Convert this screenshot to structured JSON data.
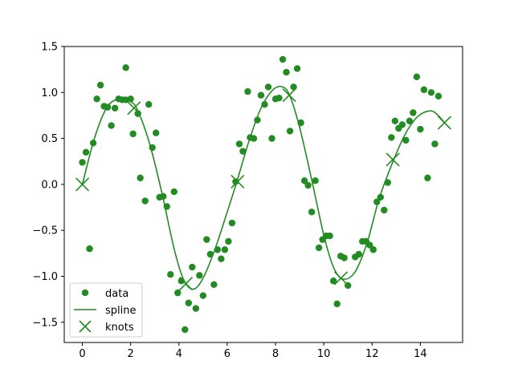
{
  "chart_data": {
    "type": "scatter",
    "title": "",
    "xlabel": "",
    "ylabel": "",
    "xlim": [
      -0.75,
      15.75
    ],
    "ylim": [
      -1.72,
      1.5
    ],
    "grid": false,
    "legend_position": "bottom-left",
    "x_ticks": [
      0,
      2,
      4,
      6,
      8,
      10,
      12,
      14
    ],
    "y_ticks": [
      -1.5,
      -1.0,
      -0.5,
      0.0,
      0.5,
      1.0,
      1.5
    ],
    "x_tick_labels": [
      "0",
      "2",
      "4",
      "6",
      "8",
      "10",
      "12",
      "14"
    ],
    "y_tick_labels": [
      "−1.5",
      "−1.0",
      "−0.5",
      "0.0",
      "0.5",
      "1.0",
      "1.5"
    ],
    "color": "#228b22",
    "series": [
      {
        "name": "data",
        "type": "scatter",
        "points": [
          [
            0.0,
            0.24
          ],
          [
            0.15,
            0.35
          ],
          [
            0.3,
            -0.7
          ],
          [
            0.45,
            0.45
          ],
          [
            0.6,
            0.93
          ],
          [
            0.75,
            1.08
          ],
          [
            0.9,
            0.85
          ],
          [
            1.05,
            0.84
          ],
          [
            1.2,
            0.64
          ],
          [
            1.35,
            0.83
          ],
          [
            1.5,
            0.93
          ],
          [
            1.65,
            0.92
          ],
          [
            1.8,
            1.27
          ],
          [
            1.8,
            0.92
          ],
          [
            2.0,
            0.93
          ],
          [
            2.1,
            0.55
          ],
          [
            2.3,
            0.77
          ],
          [
            2.4,
            0.07
          ],
          [
            2.6,
            -0.18
          ],
          [
            2.75,
            0.87
          ],
          [
            2.9,
            0.4
          ],
          [
            3.05,
            0.56
          ],
          [
            3.2,
            -0.14
          ],
          [
            3.35,
            -0.13
          ],
          [
            3.5,
            -0.24
          ],
          [
            3.65,
            -0.98
          ],
          [
            3.8,
            -0.08
          ],
          [
            3.95,
            -1.18
          ],
          [
            4.1,
            -1.05
          ],
          [
            4.25,
            -1.58
          ],
          [
            4.4,
            -1.29
          ],
          [
            4.55,
            -0.9
          ],
          [
            4.7,
            -1.35
          ],
          [
            4.85,
            -0.99
          ],
          [
            5.0,
            -1.21
          ],
          [
            5.15,
            -0.6
          ],
          [
            5.3,
            -0.76
          ],
          [
            5.45,
            -1.09
          ],
          [
            5.6,
            -0.71
          ],
          [
            5.75,
            -0.81
          ],
          [
            5.9,
            -0.71
          ],
          [
            6.05,
            -0.62
          ],
          [
            6.2,
            -0.42
          ],
          [
            6.35,
            0.03
          ],
          [
            6.5,
            0.44
          ],
          [
            6.65,
            0.36
          ],
          [
            6.85,
            1.01
          ],
          [
            6.95,
            0.51
          ],
          [
            7.1,
            0.5
          ],
          [
            7.25,
            0.7
          ],
          [
            7.4,
            0.97
          ],
          [
            7.55,
            0.87
          ],
          [
            7.7,
            1.06
          ],
          [
            7.85,
            0.5
          ],
          [
            8.0,
            0.93
          ],
          [
            8.15,
            0.94
          ],
          [
            8.3,
            1.36
          ],
          [
            8.45,
            1.22
          ],
          [
            8.6,
            0.58
          ],
          [
            8.75,
            1.06
          ],
          [
            8.9,
            1.26
          ],
          [
            9.05,
            0.67
          ],
          [
            9.2,
            0.04
          ],
          [
            9.35,
            -0.01
          ],
          [
            9.5,
            -0.3
          ],
          [
            9.65,
            0.04
          ],
          [
            9.8,
            -0.69
          ],
          [
            9.95,
            -0.6
          ],
          [
            10.1,
            -0.56
          ],
          [
            10.25,
            -0.56
          ],
          [
            10.4,
            -1.05
          ],
          [
            10.55,
            -1.3
          ],
          [
            10.7,
            -0.78
          ],
          [
            10.85,
            -0.8
          ],
          [
            11.0,
            -1.1
          ],
          [
            11.3,
            -0.79
          ],
          [
            11.45,
            -0.76
          ],
          [
            11.6,
            -0.62
          ],
          [
            11.75,
            -0.62
          ],
          [
            11.9,
            -0.66
          ],
          [
            12.05,
            -0.71
          ],
          [
            12.2,
            -0.19
          ],
          [
            12.35,
            -0.14
          ],
          [
            12.5,
            -0.28
          ],
          [
            12.65,
            0.02
          ],
          [
            12.8,
            0.51
          ],
          [
            12.95,
            0.69
          ],
          [
            13.1,
            0.61
          ],
          [
            13.25,
            0.65
          ],
          [
            13.4,
            0.48
          ],
          [
            13.55,
            0.69
          ],
          [
            13.7,
            0.78
          ],
          [
            13.85,
            1.17
          ],
          [
            14.0,
            0.6
          ],
          [
            14.15,
            1.03
          ],
          [
            14.3,
            0.07
          ],
          [
            14.45,
            1.0
          ],
          [
            14.6,
            0.44
          ],
          [
            14.75,
            0.96
          ]
        ]
      },
      {
        "name": "spline",
        "type": "line",
        "points": [
          [
            0.0,
            0.0
          ],
          [
            0.5,
            0.5
          ],
          [
            1.0,
            0.83
          ],
          [
            1.5,
            0.93
          ],
          [
            2.0,
            0.9
          ],
          [
            2.3,
            0.8
          ],
          [
            2.8,
            0.43
          ],
          [
            3.3,
            -0.1
          ],
          [
            3.8,
            -0.7
          ],
          [
            4.2,
            -1.04
          ],
          [
            4.6,
            -1.14
          ],
          [
            5.0,
            -1.02
          ],
          [
            5.5,
            -0.7
          ],
          [
            6.0,
            -0.3
          ],
          [
            6.4,
            0.03
          ],
          [
            6.9,
            0.47
          ],
          [
            7.4,
            0.83
          ],
          [
            7.9,
            1.03
          ],
          [
            8.3,
            1.06
          ],
          [
            8.6,
            0.96
          ],
          [
            9.0,
            0.62
          ],
          [
            9.5,
            0.05
          ],
          [
            10.0,
            -0.55
          ],
          [
            10.4,
            -0.9
          ],
          [
            10.8,
            -1.03
          ],
          [
            11.3,
            -0.95
          ],
          [
            11.8,
            -0.63
          ],
          [
            12.3,
            -0.15
          ],
          [
            12.9,
            0.27
          ],
          [
            13.4,
            0.56
          ],
          [
            13.9,
            0.74
          ],
          [
            14.4,
            0.8
          ],
          [
            14.7,
            0.76
          ],
          [
            15.0,
            0.67
          ]
        ]
      },
      {
        "name": "knots",
        "type": "scatter",
        "marker": "x",
        "points": [
          [
            0.0,
            0.0
          ],
          [
            2.14,
            0.83
          ],
          [
            4.29,
            -1.08
          ],
          [
            6.43,
            0.03
          ],
          [
            8.57,
            0.97
          ],
          [
            10.71,
            -1.02
          ],
          [
            12.86,
            0.27
          ],
          [
            15.0,
            0.67
          ]
        ]
      }
    ]
  }
}
